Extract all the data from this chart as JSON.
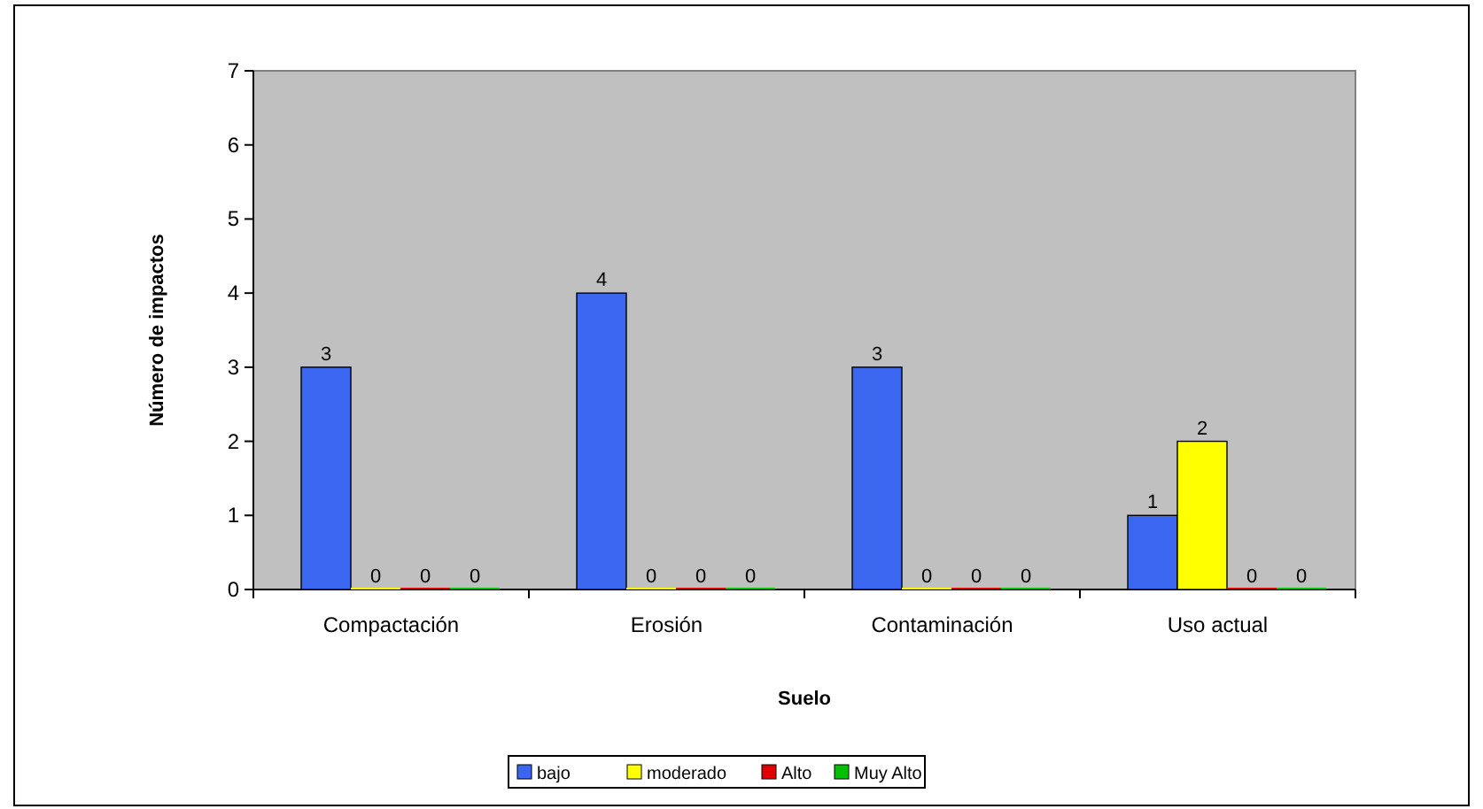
{
  "chart_data": {
    "type": "bar",
    "xlabel": "Suelo",
    "ylabel": "Número de impactos",
    "categories": [
      "Compactación",
      "Erosión",
      "Contaminación",
      "Uso actual"
    ],
    "series": [
      {
        "name": "bajo",
        "color": "#3a66f0",
        "values": [
          3,
          4,
          3,
          1
        ]
      },
      {
        "name": "moderado",
        "color": "#ffff00",
        "values": [
          0,
          0,
          0,
          2
        ]
      },
      {
        "name": "Alto",
        "color": "#e00000",
        "values": [
          0,
          0,
          0,
          0
        ]
      },
      {
        "name": "Muy Alto",
        "color": "#00c000",
        "values": [
          0,
          0,
          0,
          0
        ]
      }
    ],
    "ylim": [
      0,
      7
    ],
    "yticks": [
      0,
      1,
      2,
      3,
      4,
      5,
      6,
      7
    ],
    "grid": false,
    "legend": "bottom",
    "data_labels": true
  }
}
